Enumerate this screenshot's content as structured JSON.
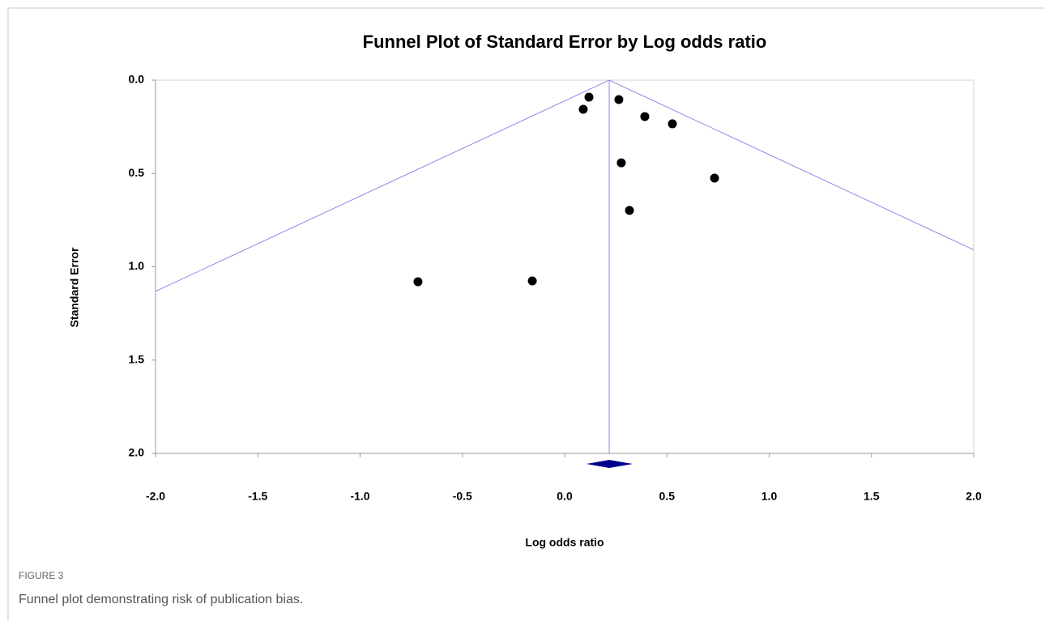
{
  "chart_data": {
    "type": "funnel",
    "title": "Funnel Plot of Standard Error by Log odds ratio",
    "x_label": "Log odds ratio",
    "y_label": "Standard Error",
    "x": [
      0.119,
      0.091,
      0.265,
      0.392,
      0.527,
      0.277,
      0.733,
      0.317,
      -0.717,
      -0.158
    ],
    "values": [
      0.091,
      0.156,
      0.104,
      0.195,
      0.234,
      0.443,
      0.525,
      0.698,
      1.08,
      1.076
    ],
    "color": "#000000",
    "pooled_estimate": 0.218,
    "pooled_ci": [
      0.107,
      0.333
    ],
    "pooled_color": "#00008b",
    "funnel_color": "#8c8ce6",
    "xlim": [
      -2,
      2
    ],
    "ylim": [
      0,
      2
    ],
    "y_inverted": true,
    "xticks": [
      {
        "value": -2,
        "label": "-2.0"
      },
      {
        "value": -1.5,
        "label": "-1.5"
      },
      {
        "value": -1,
        "label": "-1.0"
      },
      {
        "value": -0.5,
        "label": "-0.5"
      },
      {
        "value": 0,
        "label": "0.0"
      },
      {
        "value": 0.5,
        "label": "0.5"
      },
      {
        "value": 1,
        "label": "1.0"
      },
      {
        "value": 1.5,
        "label": "1.5"
      },
      {
        "value": 2,
        "label": "2.0"
      }
    ],
    "yticks": [
      {
        "value": 0,
        "label": "0.0"
      },
      {
        "value": 0.5,
        "label": "0.5"
      },
      {
        "value": 1,
        "label": "1.0"
      },
      {
        "value": 1.5,
        "label": "1.5"
      },
      {
        "value": 2,
        "label": "2.0"
      }
    ]
  },
  "caption": {
    "label": "FIGURE 3",
    "text": "Funnel plot demonstrating risk of publication bias."
  }
}
